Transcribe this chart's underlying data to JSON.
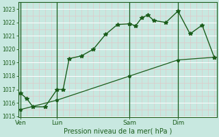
{
  "xlabel": "Pression niveau de la mer( hPa )",
  "ylim": [
    1015,
    1023.5
  ],
  "yticks": [
    1015,
    1016,
    1017,
    1018,
    1019,
    1020,
    1021,
    1022,
    1023
  ],
  "bg_color": "#c8e8e0",
  "grid_color_white": "#ffffff",
  "grid_color_pink": "#e0c8c8",
  "line_color": "#1a5c1a",
  "xtick_labels": [
    "Ven",
    "Lun",
    "Sam",
    "Dim"
  ],
  "xtick_positions": [
    0,
    3,
    9,
    13
  ],
  "line1_x": [
    0,
    0.5,
    1,
    2,
    3,
    3.5,
    4,
    5,
    6,
    7,
    8,
    9,
    9.5,
    10,
    10.5,
    11,
    12,
    13,
    14,
    15,
    16
  ],
  "line1_y": [
    1016.7,
    1016.3,
    1015.7,
    1015.7,
    1017.0,
    1017.0,
    1019.3,
    1019.5,
    1020.0,
    1021.1,
    1021.85,
    1021.9,
    1021.75,
    1022.35,
    1022.55,
    1022.15,
    1022.0,
    1022.85,
    1021.15,
    1021.8,
    1019.4
  ],
  "line2_x": [
    0,
    3,
    9,
    13,
    16
  ],
  "line2_y": [
    1015.5,
    1016.2,
    1018.0,
    1019.2,
    1019.4
  ],
  "vline_positions": [
    0,
    3,
    9,
    13
  ],
  "xmin": -0.2,
  "xmax": 16.2
}
